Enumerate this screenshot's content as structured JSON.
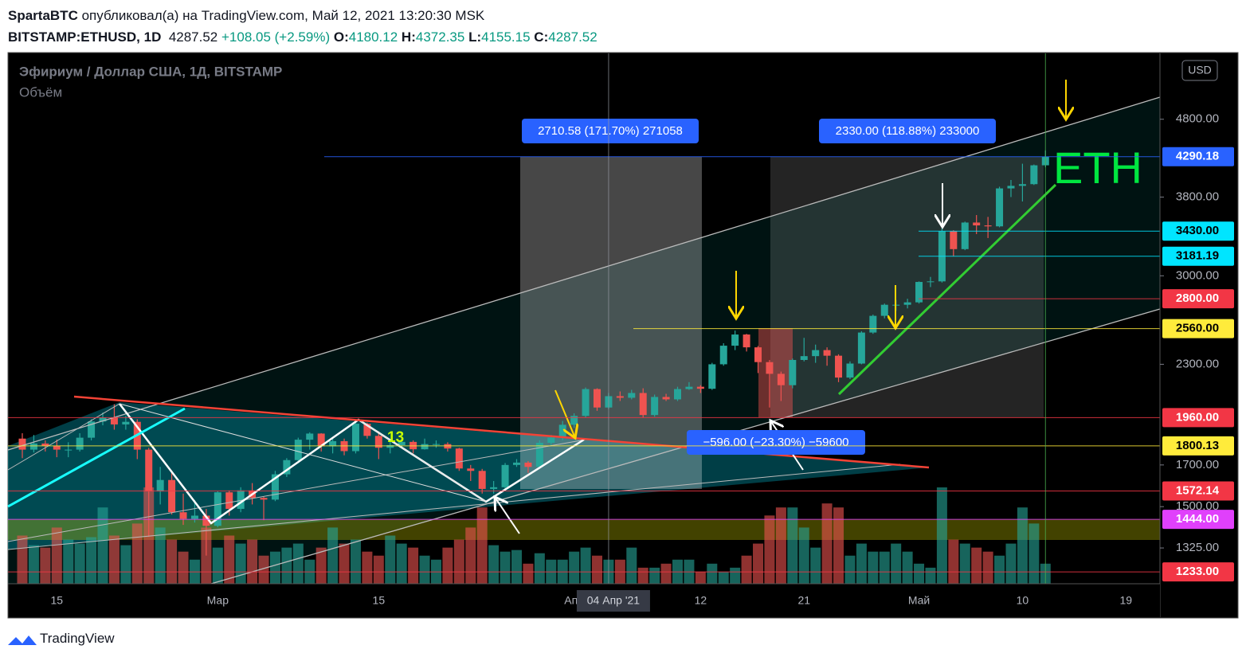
{
  "header": {
    "author": "SpartaBTC",
    "published": "опубликовал(а) на TradingView.com, Май 12, 2021 13:20:30 MSK",
    "symbol": "BITSTAMP:ETHUSD, 1D",
    "last": "4287.52",
    "change": "+108.05 (+2.59%)",
    "o_label": "O:",
    "o": "4180.12",
    "h_label": "H:",
    "h": "4372.35",
    "l_label": "L:",
    "l": "4155.15",
    "c_label": "C:",
    "c": "4287.52"
  },
  "chart_data": {
    "type": "candlestick",
    "title": "Эфириум / Доллар США, 1Д, BITSTAMP",
    "subtitle": "Объём",
    "currency": "USD",
    "log_scale": true,
    "up_color": "#26a69a",
    "down_color": "#ef5350",
    "categories": [
      null,
      null,
      null,
      "15",
      null,
      null,
      null,
      null,
      null,
      null,
      null,
      null,
      null,
      null,
      null,
      null,
      null,
      "Мар",
      null,
      null,
      null,
      null,
      null,
      null,
      null,
      null,
      null,
      null,
      null,
      null,
      null,
      "15",
      null,
      null,
      null,
      null,
      null,
      null,
      null,
      null,
      null,
      null,
      null,
      null,
      null,
      null,
      null,
      null,
      "Апр",
      null,
      null,
      null,
      null,
      null,
      null,
      null,
      null,
      null,
      null,
      "12",
      null,
      null,
      null,
      null,
      null,
      null,
      null,
      null,
      "21",
      null,
      null,
      null,
      null,
      null,
      null,
      null,
      null,
      null,
      "Май",
      null,
      null,
      null,
      null,
      null,
      null,
      null,
      null,
      "10",
      null,
      null,
      null,
      null,
      null,
      null,
      null,
      null,
      "19",
      null,
      null
    ],
    "open": [
      1840,
      1780,
      1813,
      1800,
      1780,
      1780,
      1845,
      1937,
      1960,
      1920,
      1935,
      1780,
      1570,
      1625,
      1475,
      1446,
      1460,
      1416,
      1566,
      1490,
      1575,
      1540,
      1532,
      1653,
      1725,
      1834,
      1868,
      1798,
      1826,
      1772,
      1924,
      1855,
      1790,
      1804,
      1822,
      1782,
      1810,
      1810,
      1786,
      1682,
      1670,
      1582,
      1590,
      1700,
      1712,
      1690,
      1817,
      1846,
      1918,
      1970,
      2135,
      2020,
      2090,
      2080,
      2110,
      1975,
      2085,
      2070,
      2135,
      2150,
      2137,
      2300,
      2432,
      2515,
      2420,
      2315,
      2235,
      2160,
      2330,
      2357,
      2400,
      2360,
      2210,
      2305,
      2530,
      2660,
      2750,
      2750,
      2770,
      2945,
      2950,
      3430,
      3250,
      3520,
      3490,
      3480,
      3900,
      3930,
      3950,
      4180.12,
      null,
      null,
      null,
      null,
      null,
      null,
      null,
      null,
      null
    ],
    "high": [
      1870,
      1860,
      1830,
      1835,
      1820,
      1870,
      1950,
      1990,
      2040,
      1970,
      1950,
      1790,
      1690,
      1670,
      1560,
      1530,
      1490,
      1570,
      1575,
      1590,
      1610,
      1545,
      1670,
      1735,
      1845,
      1875,
      1870,
      1840,
      1840,
      1940,
      1930,
      1880,
      1825,
      1835,
      1830,
      1840,
      1830,
      1820,
      1790,
      1700,
      1680,
      1620,
      1710,
      1730,
      1720,
      1830,
      1860,
      1940,
      1985,
      2145,
      2140,
      2110,
      2120,
      2130,
      2140,
      2100,
      2105,
      2150,
      2180,
      2160,
      2310,
      2450,
      2545,
      2520,
      2430,
      2330,
      2250,
      2340,
      2490,
      2440,
      2420,
      2370,
      2320,
      2540,
      2670,
      2760,
      2790,
      2800,
      2950,
      2990,
      3460,
      3440,
      3530,
      3600,
      3580,
      3920,
      4000,
      4200,
      4190,
      4372.35,
      null,
      null,
      null,
      null,
      null,
      null,
      null,
      null,
      null
    ],
    "low": [
      1735,
      1765,
      1770,
      1740,
      1740,
      1770,
      1830,
      1915,
      1890,
      1890,
      1730,
      1370,
      1510,
      1465,
      1420,
      1430,
      1295,
      1410,
      1460,
      1475,
      1510,
      1440,
      1525,
      1640,
      1720,
      1780,
      1770,
      1760,
      1750,
      1760,
      1840,
      1730,
      1760,
      1790,
      1760,
      1780,
      1790,
      1770,
      1670,
      1620,
      1560,
      1560,
      1580,
      1690,
      1660,
      1680,
      1800,
      1830,
      1900,
      1960,
      2000,
      2010,
      2060,
      2070,
      1960,
      1965,
      2060,
      2060,
      2130,
      2110,
      2130,
      2290,
      2400,
      2390,
      2240,
      2020,
      2060,
      2140,
      2320,
      2310,
      2290,
      2180,
      2200,
      2300,
      2520,
      2640,
      2700,
      2720,
      2760,
      2900,
      2940,
      3180,
      3240,
      3400,
      3360,
      3470,
      3800,
      3750,
      3940,
      4155.15,
      null,
      null,
      null,
      null,
      null,
      null,
      null,
      null,
      null
    ],
    "close": [
      1780,
      1813,
      1800,
      1780,
      1780,
      1845,
      1937,
      1960,
      1920,
      1935,
      1780,
      1570,
      1625,
      1475,
      1446,
      1460,
      1416,
      1566,
      1490,
      1575,
      1540,
      1532,
      1653,
      1725,
      1834,
      1868,
      1798,
      1826,
      1772,
      1924,
      1855,
      1790,
      1804,
      1822,
      1782,
      1810,
      1810,
      1786,
      1682,
      1670,
      1582,
      1590,
      1700,
      1712,
      1690,
      1817,
      1846,
      1918,
      1970,
      2135,
      2020,
      2090,
      2080,
      2110,
      1975,
      2085,
      2070,
      2135,
      2150,
      2137,
      2300,
      2432,
      2515,
      2420,
      2315,
      2235,
      2160,
      2330,
      2357,
      2400,
      2360,
      2210,
      2305,
      2530,
      2660,
      2750,
      2750,
      2770,
      2945,
      2950,
      3430,
      3250,
      3520,
      3490,
      3480,
      3900,
      3930,
      3950,
      4180.12,
      4287.52,
      null,
      null,
      null,
      null,
      null,
      null,
      null,
      null,
      null
    ],
    "volume": [
      60,
      48,
      45,
      70,
      55,
      50,
      58,
      95,
      60,
      48,
      75,
      120,
      70,
      55,
      40,
      30,
      70,
      45,
      60,
      50,
      55,
      35,
      40,
      45,
      50,
      30,
      45,
      70,
      50,
      55,
      40,
      35,
      60,
      50,
      45,
      35,
      30,
      45,
      55,
      70,
      95,
      48,
      40,
      42,
      25,
      38,
      30,
      30,
      40,
      45,
      35,
      30,
      30,
      45,
      20,
      20,
      25,
      30,
      30,
      15,
      25,
      15,
      20,
      35,
      50,
      85,
      95,
      95,
      70,
      45,
      100,
      95,
      35,
      50,
      40,
      40,
      50,
      40,
      25,
      20,
      120,
      55,
      50,
      45,
      40,
      35,
      50,
      95,
      75,
      25,
      null,
      null,
      null,
      null,
      null,
      null,
      null,
      null,
      null
    ],
    "ylim": [
      1190,
      5850
    ],
    "yticks": [
      {
        "value": 4800,
        "label": "4800.00"
      },
      {
        "value": 3800,
        "label": "3800.00"
      },
      {
        "value": 3000,
        "label": "3000.00"
      },
      {
        "value": 2300,
        "label": "2300.00"
      },
      {
        "value": 1700,
        "label": "1700.00"
      },
      {
        "value": 1500,
        "label": "1500.00"
      },
      {
        "value": 1325,
        "label": "1325.00"
      }
    ],
    "price_levels": [
      {
        "value": 4290.18,
        "color": "#2962ff",
        "text_color": "#ffffff"
      },
      {
        "value": 3430,
        "label": "3430.00",
        "color": "#00e5ff",
        "text_color": "#000000"
      },
      {
        "value": 3181.19,
        "color": "#00e5ff",
        "text_color": "#000000"
      },
      {
        "value": 2800,
        "label": "2800.00",
        "color": "#f23645",
        "text_color": "#ffffff"
      },
      {
        "value": 2560,
        "label": "2560.00",
        "color": "#ffeb3b",
        "text_color": "#000000"
      },
      {
        "value": 1960,
        "label": "1960.00",
        "color": "#f23645",
        "text_color": "#ffffff"
      },
      {
        "value": 1800.13,
        "color": "#ffeb3b",
        "text_color": "#000000"
      },
      {
        "value": 1572.14,
        "color": "#f23645",
        "text_color": "#ffffff"
      },
      {
        "value": 1444,
        "label": "1444.00",
        "color": "#e040fb",
        "text_color": "#ffffff"
      },
      {
        "value": 1233,
        "label": "1233.00",
        "color": "#f23645",
        "text_color": "#ffffff"
      }
    ],
    "crosshair_label": "04 Апр '21",
    "measurements": [
      "2710.58 (171.70%) 271058",
      "2330.00 (118.88%) 233000",
      "−596.00 (−23.30%) −59600"
    ],
    "eth_label": "ETH",
    "count_label": "13"
  },
  "brand": "TradingView"
}
